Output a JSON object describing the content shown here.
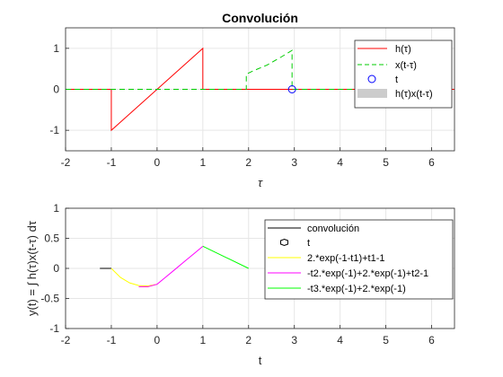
{
  "chart_data": [
    {
      "type": "line",
      "title": "Convolución",
      "xlabel": "τ",
      "ylabel": "",
      "xlim": [
        -2,
        6.5
      ],
      "ylim": [
        -1.5,
        1.5
      ],
      "xticks": [
        "-2",
        "-1",
        "0",
        "1",
        "2",
        "3",
        "4",
        "5",
        "6"
      ],
      "yticks": [
        "-1",
        "0",
        "1"
      ],
      "grid": true,
      "legend_position": "top-right",
      "series": [
        {
          "name": "h(τ)",
          "color": "#ff0000",
          "style": "solid",
          "x": [
            -2,
            -1,
            -1,
            1,
            1,
            6.5
          ],
          "y": [
            0,
            0,
            -1,
            1,
            0,
            0
          ]
        },
        {
          "name": "x(t-τ)",
          "color": "#00cc00",
          "style": "dashed",
          "x": [
            -2,
            1.95,
            1.95,
            2.1,
            2.4,
            2.7,
            2.95,
            2.95,
            6.5
          ],
          "y": [
            0,
            0,
            0.37,
            0.45,
            0.59,
            0.78,
            0.95,
            0,
            0
          ]
        },
        {
          "name": "t",
          "color": "#0000ff",
          "style": "marker",
          "x": [
            2.95
          ],
          "y": [
            0
          ]
        },
        {
          "name": "h(τ)x(t-τ)",
          "color": "#cccccc",
          "style": "area",
          "x": [],
          "y": []
        }
      ]
    },
    {
      "type": "line",
      "title": "",
      "xlabel": "t",
      "ylabel": "y(t) = ∫ h(τ)x(t-τ) dτ",
      "xlim": [
        -2,
        6.5
      ],
      "ylim": [
        -1,
        1
      ],
      "xticks": [
        "-2",
        "-1",
        "0",
        "1",
        "2",
        "3",
        "4",
        "5",
        "6"
      ],
      "yticks": [
        "-1",
        "-0.5",
        "0",
        "0.5",
        "1"
      ],
      "grid": true,
      "legend_position": "top-right",
      "series": [
        {
          "name": "convolución",
          "color": "#000000",
          "style": "solid",
          "x": [
            -1.25,
            -1.0
          ],
          "y": [
            0,
            0
          ]
        },
        {
          "name": "t",
          "color": "#000000",
          "style": "marker",
          "x": [],
          "y": []
        },
        {
          "name": "2.*exp(-1-t1)+t1-1",
          "color": "#ffff00",
          "style": "solid",
          "x": [
            -1,
            -0.8,
            -0.6,
            -0.4,
            -0.2,
            0
          ],
          "y": [
            0,
            -0.151,
            -0.241,
            -0.285,
            -0.293,
            -0.264
          ]
        },
        {
          "name": "-t2.*exp(-1)+2.*exp(-1)+t2-1",
          "color": "#ff00ff",
          "style": "solid",
          "x": [
            -0.4,
            -0.2,
            0,
            0.2,
            0.4,
            0.6,
            0.8,
            1.0
          ],
          "y": [
            -0.305,
            -0.305,
            -0.264,
            -0.138,
            -0.012,
            0.115,
            0.241,
            0.368
          ]
        },
        {
          "name": "-t3.*exp(-1)+2.*exp(-1)",
          "color": "#00ff00",
          "style": "solid",
          "x": [
            1,
            1.5,
            2.0
          ],
          "y": [
            0.368,
            0.184,
            0
          ]
        }
      ]
    }
  ]
}
